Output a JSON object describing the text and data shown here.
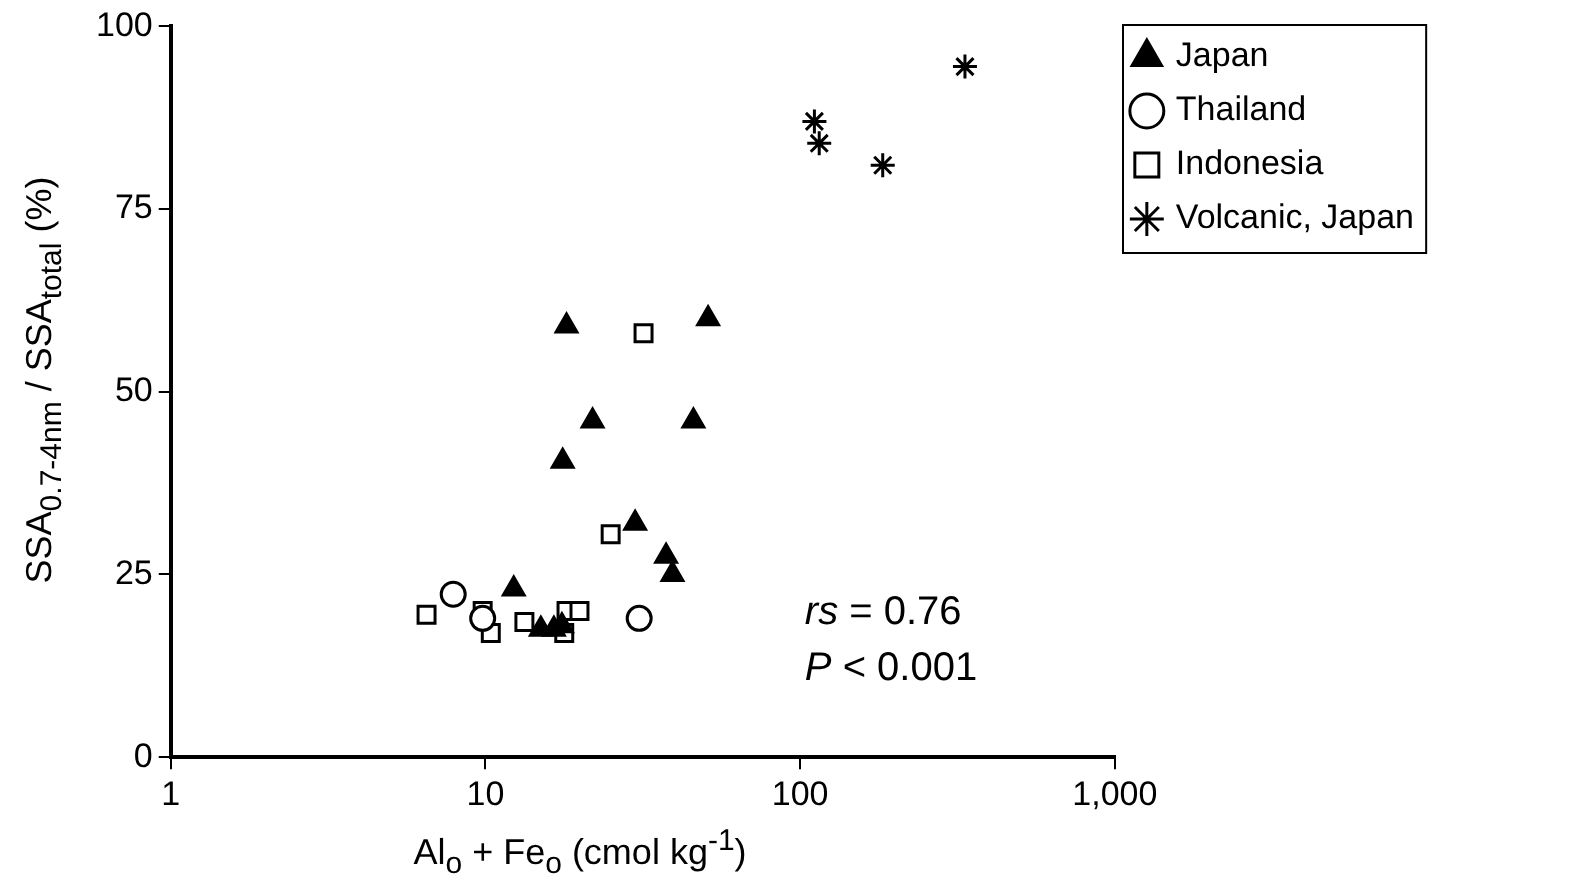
{
  "chart_data": {
    "type": "scatter",
    "xlabel": "Al$_{o}$ + Fe$_{o}$ (cmol kg$^{-1}$)",
    "ylabel": "SSA$_{0.7-4nm}$ / SSA$_{total}$ (%)",
    "log": "x",
    "xlim": [
      1,
      1000
    ],
    "xticks": [
      1,
      10,
      100,
      {
        "value": 1000,
        "label": "1,000"
      }
    ],
    "ylim": [
      0,
      100
    ],
    "yticks": [
      0,
      25,
      50,
      75,
      100
    ],
    "grid": false,
    "legend": "right",
    "annotations": [
      "rs = 0.76",
      "P < 0.001"
    ],
    "series": [
      {
        "name": "Japan",
        "color": "#000000",
        "marker": "triangle",
        "x": [
          18.1,
          51,
          21.9,
          45.8,
          17.6,
          29.9,
          37.5,
          39.3,
          12.3,
          15,
          16.5,
          17.5
        ],
        "values": [
          59,
          60,
          46,
          46,
          40.5,
          32,
          27.5,
          25,
          23,
          17.5,
          17.5,
          18
        ]
      },
      {
        "name": "Thailand",
        "color": "#000000",
        "marker": "circle",
        "x": [
          7.9,
          9.8,
          30.8
        ],
        "values": [
          22.3,
          19,
          19
        ]
      },
      {
        "name": "Indonesia",
        "color": "#000000",
        "marker": "square",
        "x": [
          31.8,
          25,
          6.5,
          9.8,
          10.4,
          18.1,
          19.9,
          13.3,
          17.8
        ],
        "values": [
          58,
          30.5,
          19.5,
          20,
          17,
          20,
          20,
          18.5,
          17
        ]
      },
      {
        "name": "Volcanic, Japan",
        "color": "#000000",
        "marker": "cross",
        "x": [
          111,
          115,
          183,
          334
        ],
        "values": [
          87,
          84,
          81,
          94.5
        ]
      }
    ]
  }
}
